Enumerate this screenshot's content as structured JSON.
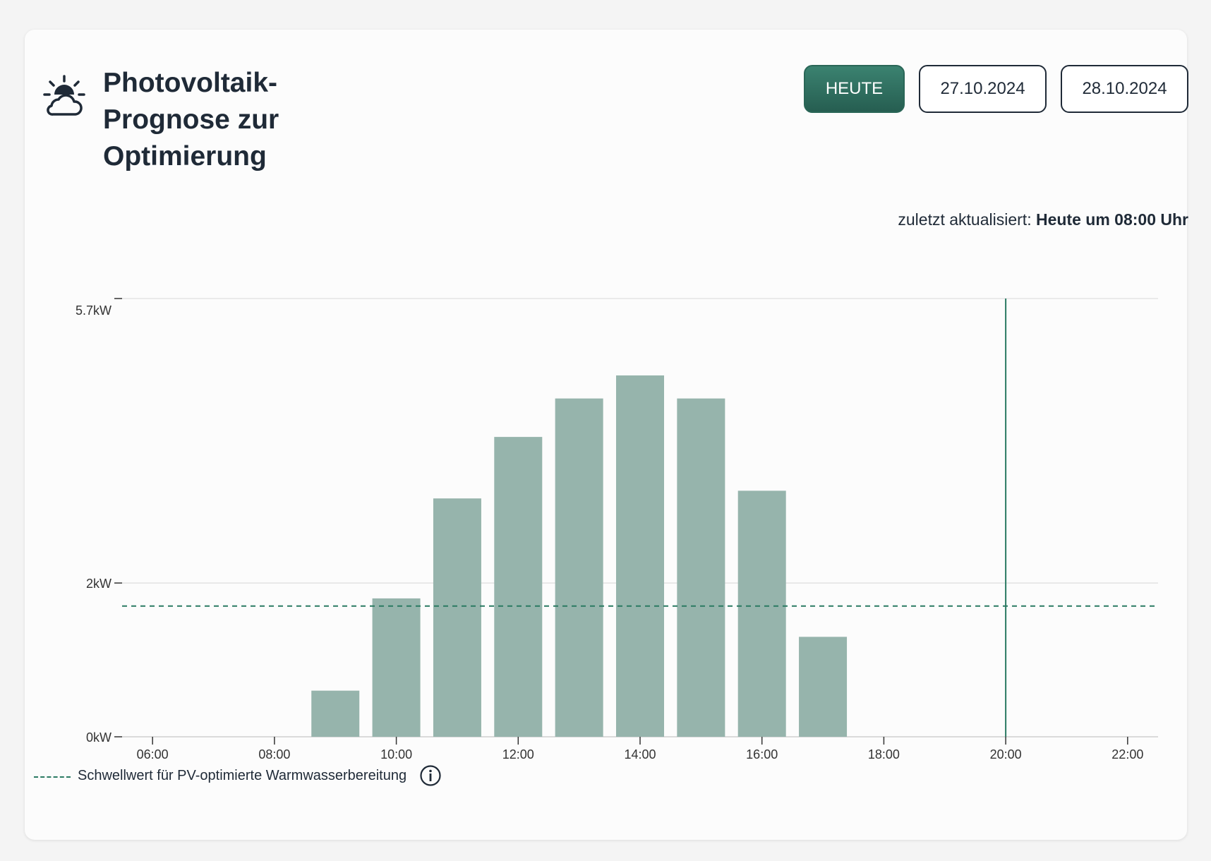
{
  "header": {
    "icon": "sun-cloud-icon",
    "title": "Photovoltaik-Prognose zur Optimierung"
  },
  "date_buttons": [
    {
      "label": "HEUTE",
      "active": true
    },
    {
      "label": "27.10.2024",
      "active": false
    },
    {
      "label": "28.10.2024",
      "active": false
    }
  ],
  "updated": {
    "prefix": "zuletzt aktualisiert:",
    "value": "Heute um 08:00 Uhr"
  },
  "legend": {
    "threshold_label": "Schwellwert für PV-optimierte Warmwasserbereitung",
    "info_icon": "info-icon"
  },
  "colors": {
    "accent": "#2a7a62",
    "bar": "#96b4ac",
    "button_active": "#2e6e5e",
    "text": "#1f2a37"
  },
  "chart_data": {
    "type": "bar",
    "title": "",
    "xlabel": "",
    "ylabel": "",
    "x_ticks": [
      "06:00",
      "08:00",
      "10:00",
      "12:00",
      "14:00",
      "16:00",
      "18:00",
      "20:00",
      "22:00"
    ],
    "y_ticks": [
      {
        "value": 0,
        "label": "0kW"
      },
      {
        "value": 2,
        "label": "2kW"
      },
      {
        "value": 5.7,
        "label": "5.7kW"
      }
    ],
    "xlim": [
      5.5,
      22.5
    ],
    "ylim": [
      0,
      5.7
    ],
    "grid": true,
    "categories": [
      "09:00",
      "10:00",
      "11:00",
      "12:00",
      "13:00",
      "14:00",
      "15:00",
      "16:00",
      "17:00"
    ],
    "x": [
      9,
      10,
      11,
      12,
      13,
      14,
      15,
      16,
      17
    ],
    "values": [
      0.6,
      1.8,
      3.1,
      3.9,
      4.4,
      4.7,
      4.4,
      3.2,
      1.3
    ],
    "threshold": 1.7,
    "now_marker": "20:00"
  }
}
